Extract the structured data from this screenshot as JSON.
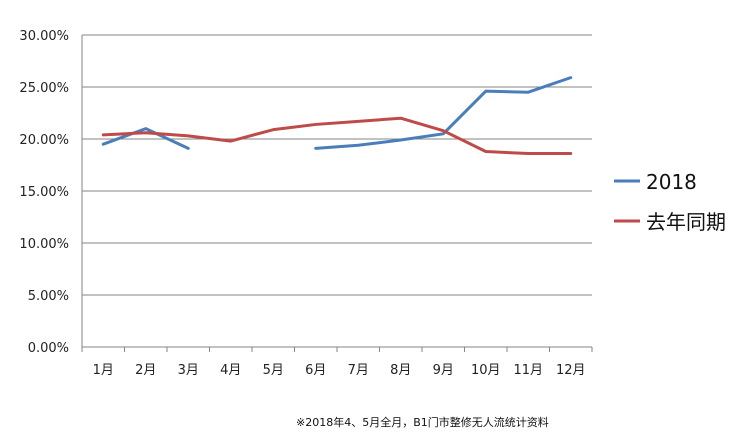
{
  "chart_data": {
    "type": "line",
    "categories": [
      "1月",
      "2月",
      "3月",
      "4月",
      "5月",
      "6月",
      "7月",
      "8月",
      "9月",
      "10月",
      "11月",
      "12月"
    ],
    "series": [
      {
        "name": "2018",
        "color": "#4A7EBB",
        "values": [
          0.195,
          0.21,
          0.191,
          null,
          null,
          0.191,
          0.194,
          0.199,
          0.205,
          0.246,
          0.245,
          0.259
        ]
      },
      {
        "name": "去年同期",
        "color": "#BE4B48",
        "values": [
          0.204,
          0.206,
          0.203,
          0.198,
          0.209,
          0.214,
          0.217,
          0.22,
          0.208,
          0.188,
          0.186,
          0.186
        ]
      }
    ],
    "ylim": [
      0,
      0.3
    ],
    "yticks": [
      "0.00%",
      "5.00%",
      "10.00%",
      "15.00%",
      "20.00%",
      "25.00%",
      "30.00%"
    ],
    "grid": true,
    "legend_position": "right"
  },
  "footnote": "※2018年4、5月全月，B1门市整修无人流统计资料"
}
